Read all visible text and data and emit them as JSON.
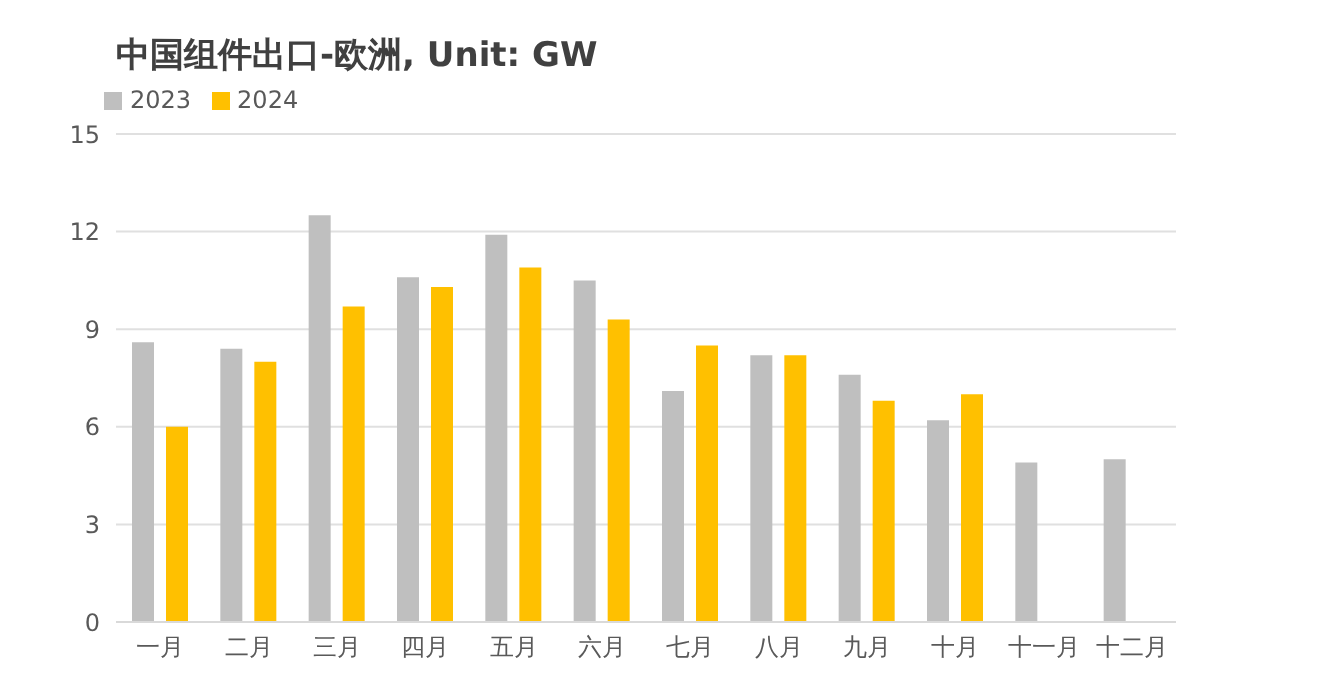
{
  "chart_data": {
    "type": "bar",
    "title": "中国组件出口-欧洲, Unit: GW",
    "categories": [
      "一月",
      "二月",
      "三月",
      "四月",
      "五月",
      "六月",
      "七月",
      "八月",
      "九月",
      "十月",
      "十一月",
      "十二月"
    ],
    "series": [
      {
        "name": "2023",
        "color": "#bfbfbf",
        "values": [
          8.6,
          8.4,
          12.5,
          10.6,
          11.9,
          10.5,
          7.1,
          8.2,
          7.6,
          6.2,
          4.9,
          5.0
        ]
      },
      {
        "name": "2024",
        "color": "#ffc000",
        "values": [
          6.0,
          8.0,
          9.7,
          10.3,
          10.9,
          9.3,
          8.5,
          8.2,
          6.8,
          7.0,
          null,
          null
        ]
      }
    ],
    "ylim": [
      0,
      15
    ],
    "yticks": [
      0,
      3,
      6,
      9,
      12,
      15
    ],
    "grid": "y",
    "legend": "top left"
  }
}
